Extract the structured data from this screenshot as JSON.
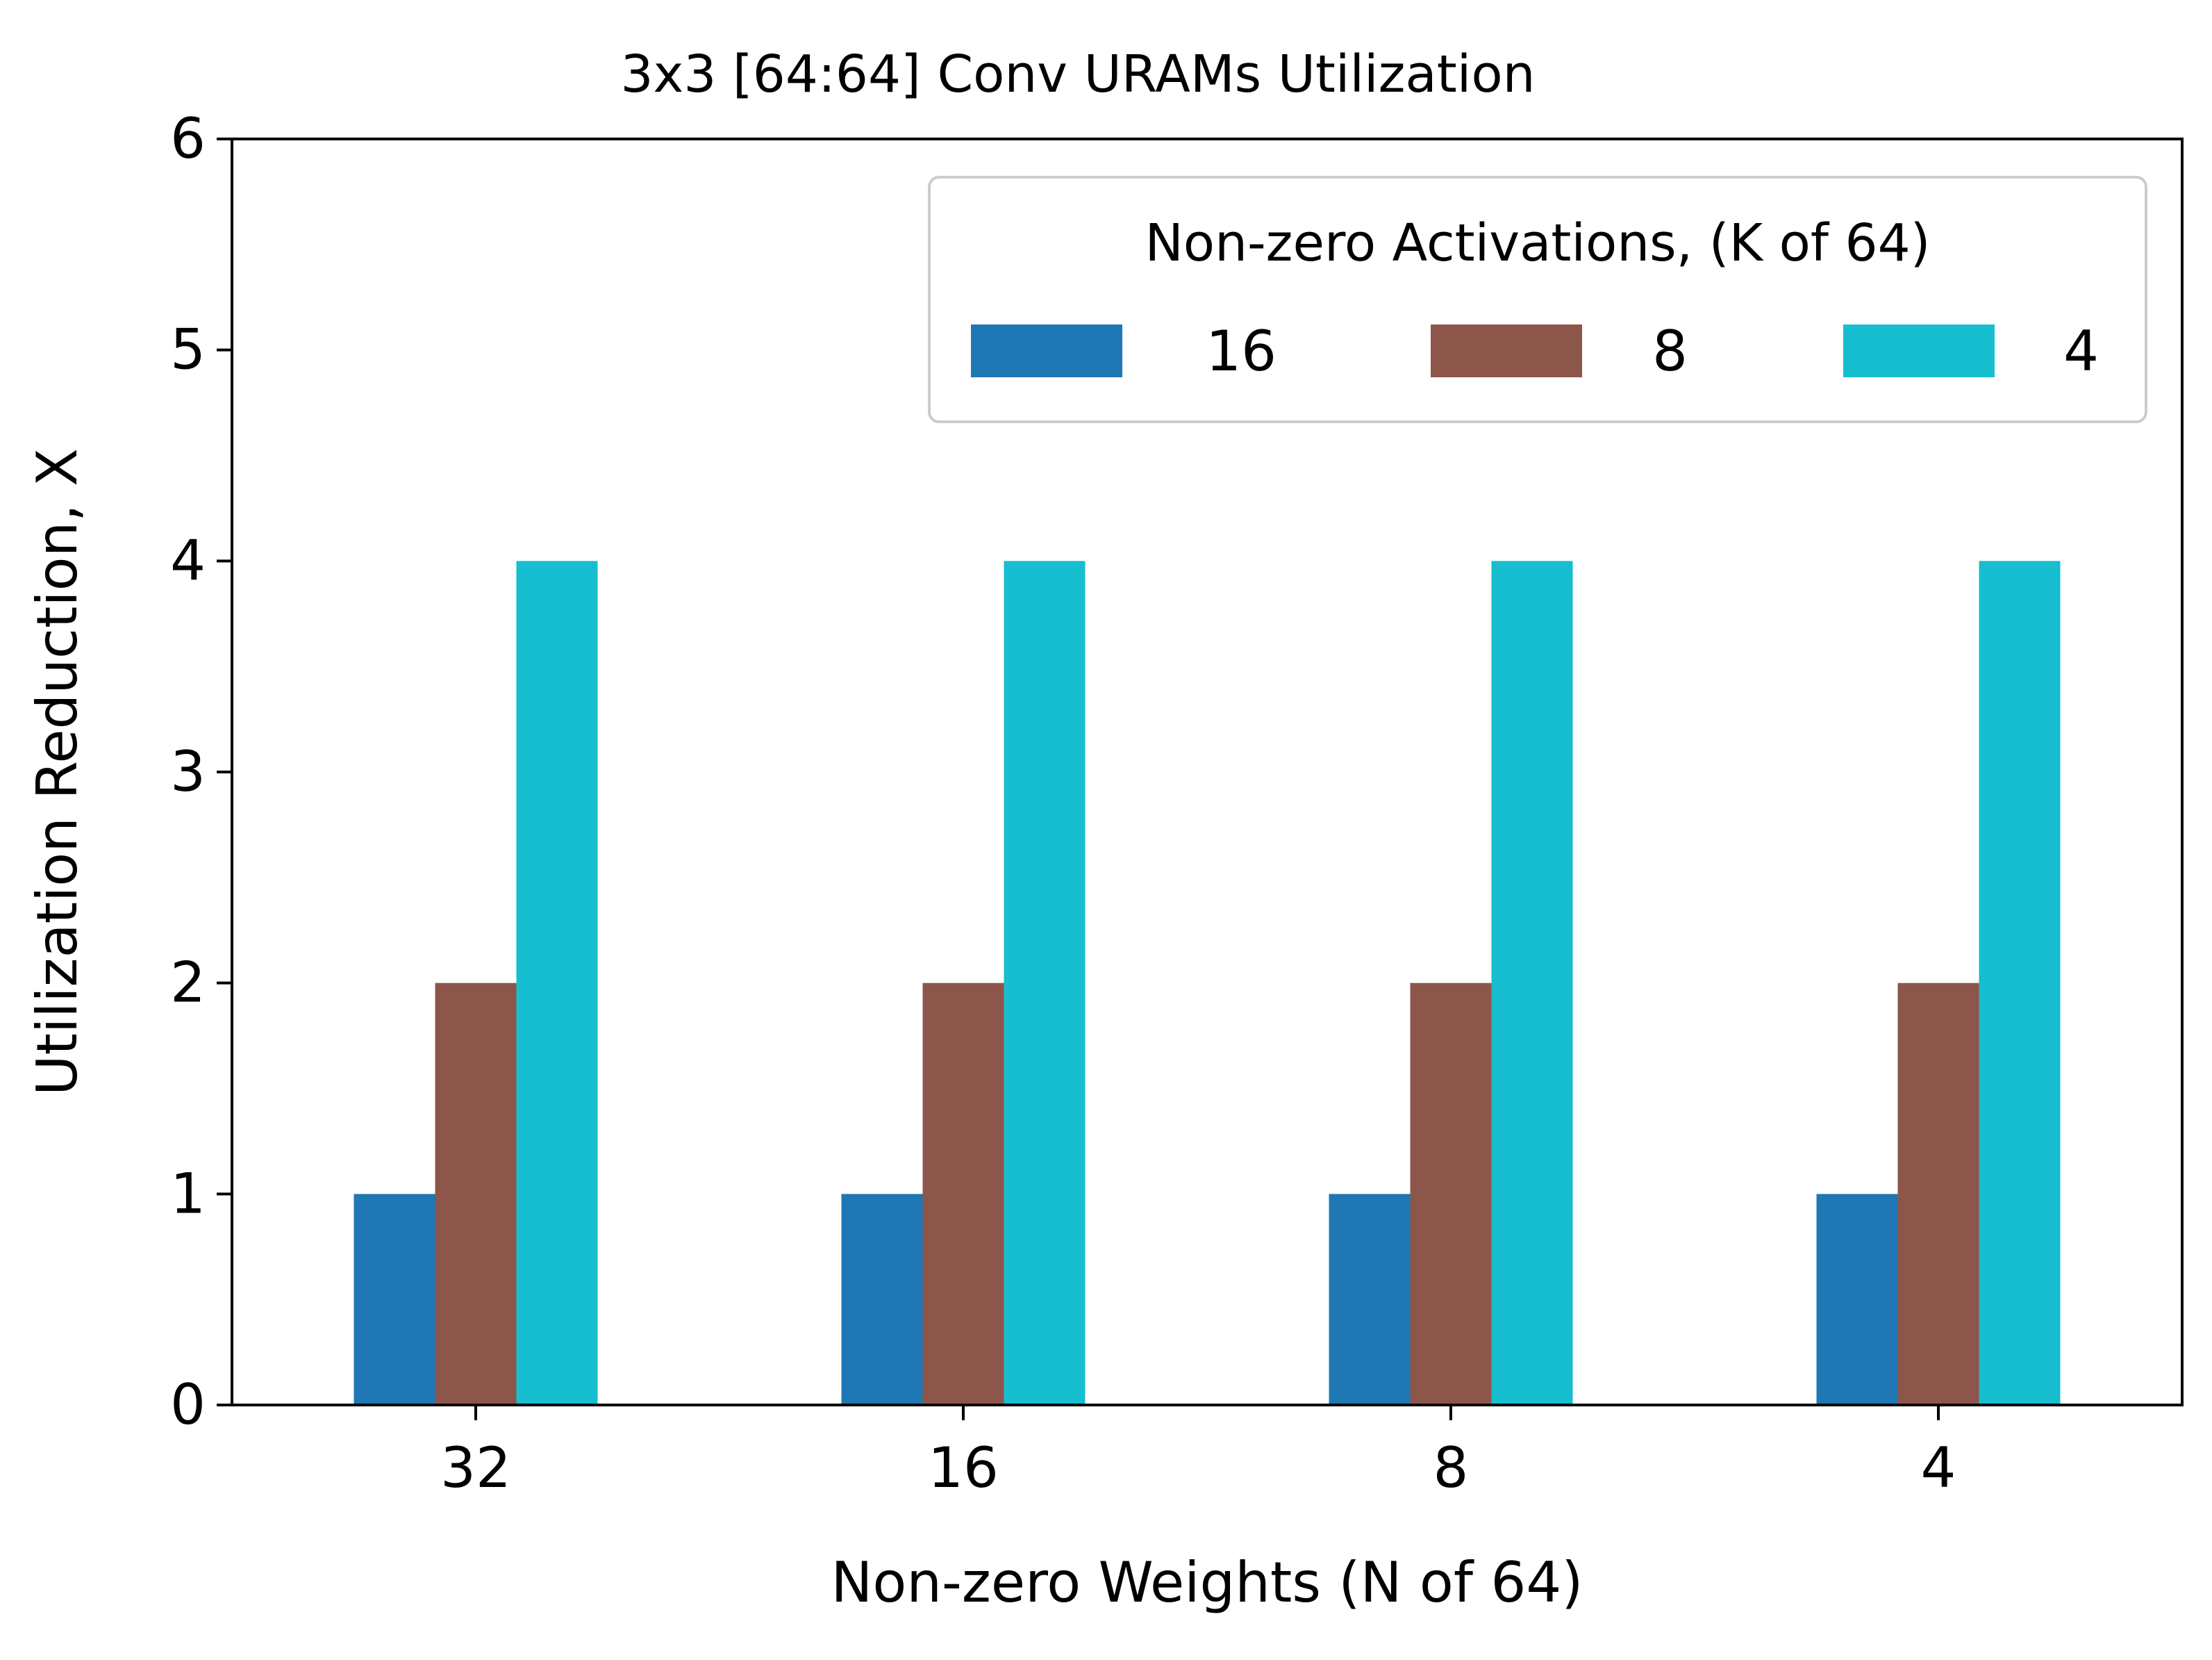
{
  "chart_data": {
    "type": "bar",
    "title": "3x3 [64:64] Conv URAMs Utilization",
    "xlabel": "Non-zero Weights (N of 64)",
    "ylabel": "Utilization Reduction, X",
    "categories": [
      "32",
      "16",
      "8",
      "4"
    ],
    "ylim": [
      0,
      6
    ],
    "yticks": [
      "0",
      "1",
      "2",
      "3",
      "4",
      "5",
      "6"
    ],
    "legend": {
      "title": "Non-zero Activations, (K of 64)",
      "placement": "top-right",
      "columns": 3
    },
    "series": [
      {
        "name": "16",
        "values": [
          1,
          1,
          1,
          1
        ],
        "color": "#1f77b4"
      },
      {
        "name": "8",
        "values": [
          2,
          2,
          2,
          2
        ],
        "color": "#8c564b"
      },
      {
        "name": "4",
        "values": [
          4,
          4,
          4,
          4
        ],
        "color": "#17becf"
      }
    ],
    "grid": false
  }
}
